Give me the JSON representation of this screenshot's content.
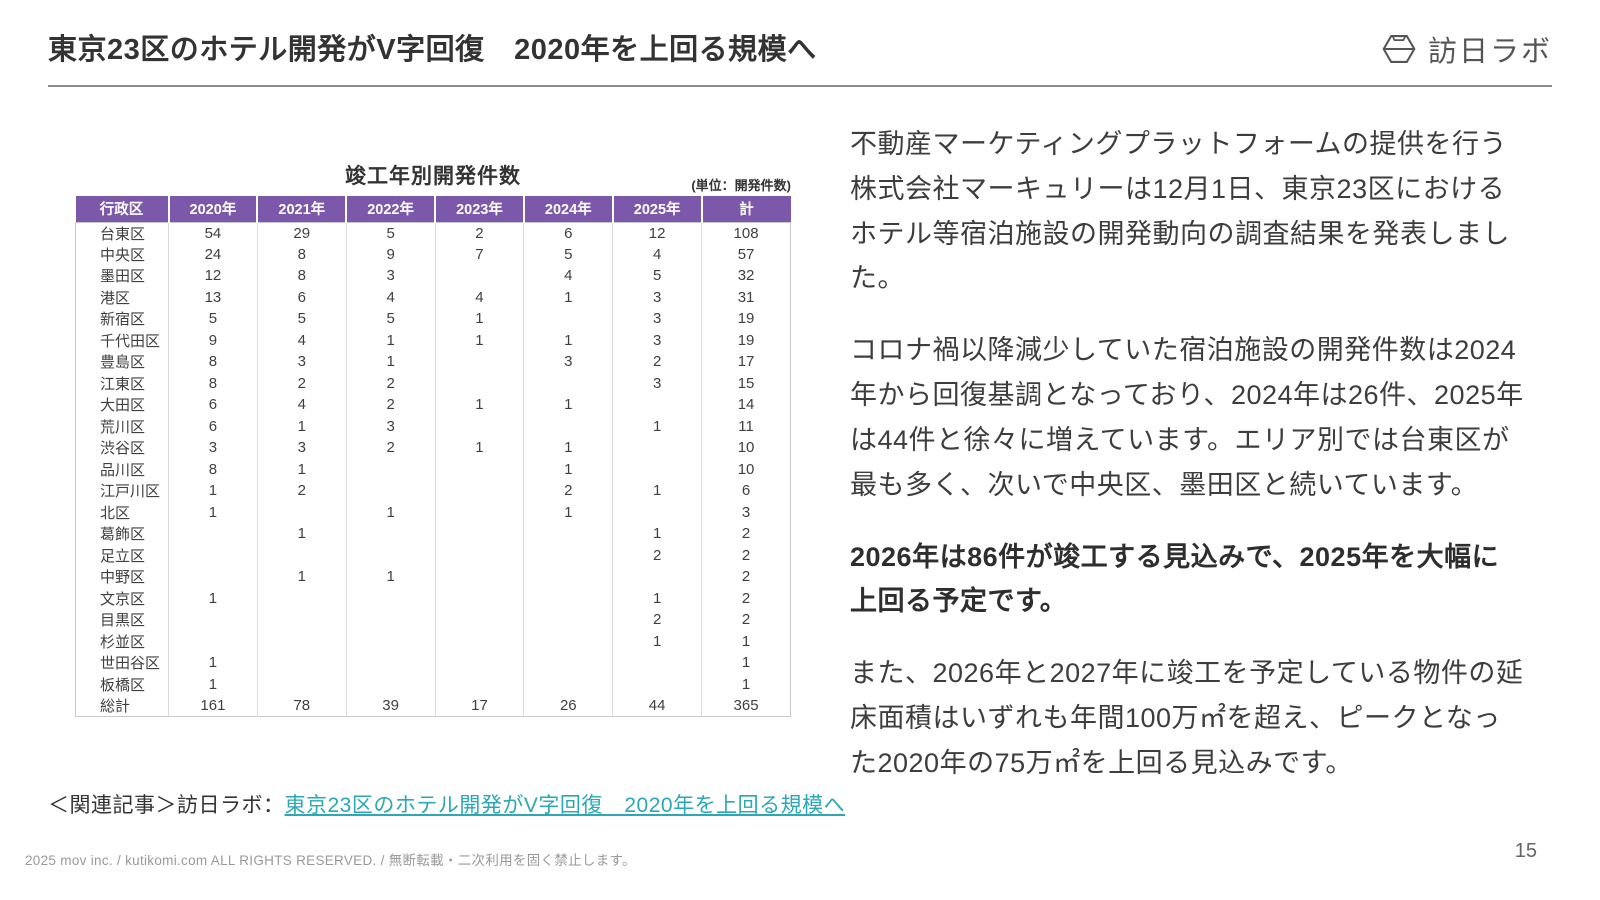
{
  "page": {
    "title": "東京23区のホテル開発がV字回復　2020年を上回る規模へ",
    "footer": "2025 mov inc. / kutikomi.com ALL RIGHTS RESERVED. / 無断転載・二次利用を固く禁止します。",
    "page_number": "15"
  },
  "logo": {
    "text": "訪日ラボ",
    "icon": "hexagon-logo-icon",
    "color": "#555555"
  },
  "table": {
    "title": "竣工年別開発件数",
    "unit_label": "(単位：開発件数)",
    "header_bg": "#7B58AA",
    "columns": [
      "行政区",
      "2020年",
      "2021年",
      "2022年",
      "2023年",
      "2024年",
      "2025年",
      "計"
    ],
    "rows": [
      [
        "台東区",
        "54",
        "29",
        "5",
        "2",
        "6",
        "12",
        "108"
      ],
      [
        "中央区",
        "24",
        "8",
        "9",
        "7",
        "5",
        "4",
        "57"
      ],
      [
        "墨田区",
        "12",
        "8",
        "3",
        "",
        "4",
        "5",
        "32"
      ],
      [
        "港区",
        "13",
        "6",
        "4",
        "4",
        "1",
        "3",
        "31"
      ],
      [
        "新宿区",
        "5",
        "5",
        "5",
        "1",
        "",
        "3",
        "19"
      ],
      [
        "千代田区",
        "9",
        "4",
        "1",
        "1",
        "1",
        "3",
        "19"
      ],
      [
        "豊島区",
        "8",
        "3",
        "1",
        "",
        "3",
        "2",
        "17"
      ],
      [
        "江東区",
        "8",
        "2",
        "2",
        "",
        "",
        "3",
        "15"
      ],
      [
        "大田区",
        "6",
        "4",
        "2",
        "1",
        "1",
        "",
        "14"
      ],
      [
        "荒川区",
        "6",
        "1",
        "3",
        "",
        "",
        "1",
        "11"
      ],
      [
        "渋谷区",
        "3",
        "3",
        "2",
        "1",
        "1",
        "",
        "10"
      ],
      [
        "品川区",
        "8",
        "1",
        "",
        "",
        "1",
        "",
        "10"
      ],
      [
        "江戸川区",
        "1",
        "2",
        "",
        "",
        "2",
        "1",
        "6"
      ],
      [
        "北区",
        "1",
        "",
        "1",
        "",
        "1",
        "",
        "3"
      ],
      [
        "葛飾区",
        "",
        "1",
        "",
        "",
        "",
        "1",
        "2"
      ],
      [
        "足立区",
        "",
        "",
        "",
        "",
        "",
        "2",
        "2"
      ],
      [
        "中野区",
        "",
        "1",
        "1",
        "",
        "",
        "",
        "2"
      ],
      [
        "文京区",
        "1",
        "",
        "",
        "",
        "",
        "1",
        "2"
      ],
      [
        "目黒区",
        "",
        "",
        "",
        "",
        "",
        "2",
        "2"
      ],
      [
        "杉並区",
        "",
        "",
        "",
        "",
        "",
        "1",
        "1"
      ],
      [
        "世田谷区",
        "1",
        "",
        "",
        "",
        "",
        "",
        "1"
      ],
      [
        "板橋区",
        "1",
        "",
        "",
        "",
        "",
        "",
        "1"
      ],
      [
        "総計",
        "161",
        "78",
        "39",
        "17",
        "26",
        "44",
        "365"
      ]
    ]
  },
  "article": {
    "paragraphs": [
      {
        "text": "不動産マーケティングプラットフォームの提供を行う株式会社マーキュリーは12月1日、東京23区におけるホテル等宿泊施設の開発動向の調査結果を発表しました。",
        "bold": false
      },
      {
        "text": "コロナ禍以降減少していた宿泊施設の開発件数は2024年から回復基調となっており、2024年は26件、2025年は44件と徐々に増えています。エリア別では台東区が最も多く、次いで中央区、墨田区と続いています。",
        "bold": false
      },
      {
        "text": "2026年は86件が竣工する見込みで、2025年を大幅に上回る予定です。",
        "bold": true
      },
      {
        "text": "また、2026年と2027年に竣工を予定している物件の延床面積はいずれも年間100万㎡を超え、ピークとなった2020年の75万㎡を上回る見込みです。",
        "bold": false
      }
    ]
  },
  "related": {
    "prefix": "＜関連記事＞訪日ラボ：",
    "link_text": "東京23区のホテル開発がV字回復　2020年を上回る規模へ",
    "link_color": "#2BA7B5"
  }
}
